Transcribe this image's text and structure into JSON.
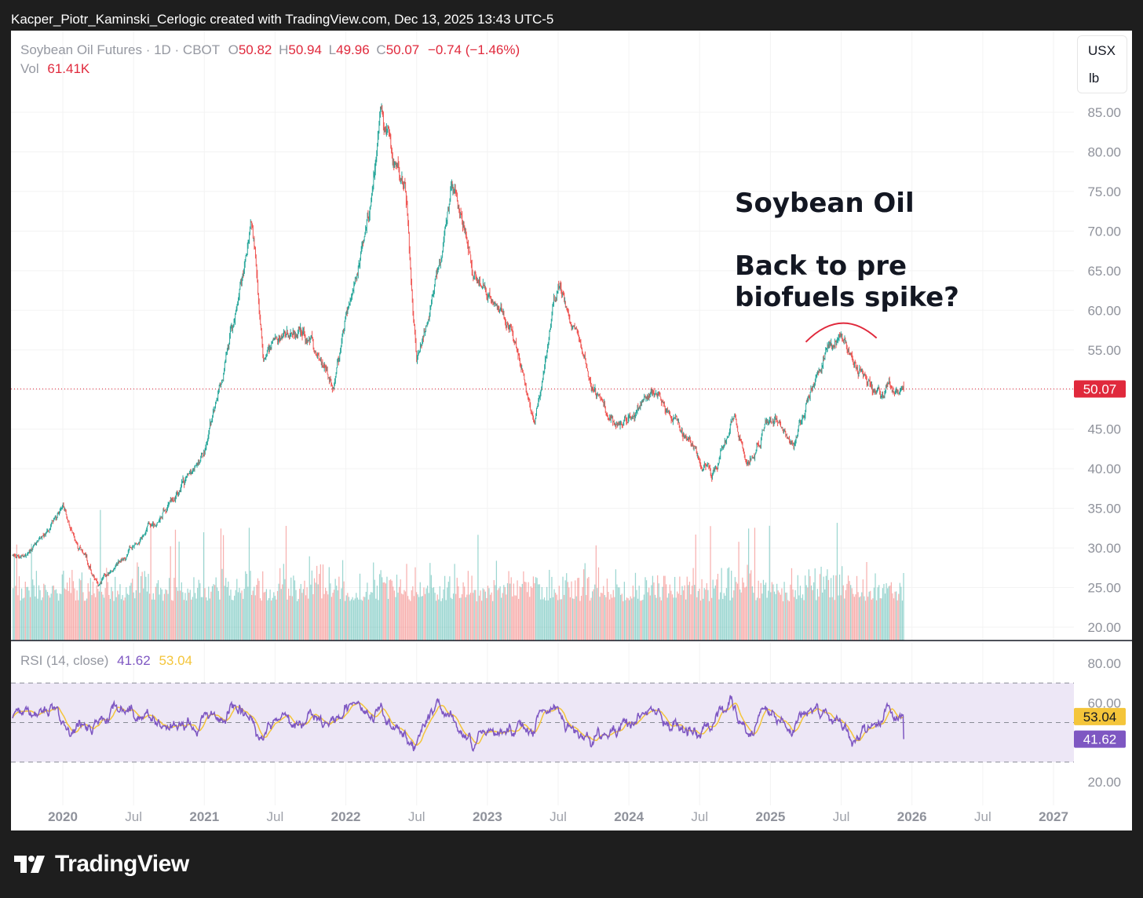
{
  "caption": "Kacper_Piotr_Kaminski_Cerlogic created with TradingView.com, Dec 13, 2025 13:43 UTC-5",
  "legend": {
    "symbol": "Soybean Oil Futures · 1D · CBOT",
    "o_label": "O",
    "o_value": "50.82",
    "h_label": "H",
    "h_value": "50.94",
    "l_label": "L",
    "l_value": "49.96",
    "c_label": "C",
    "c_value": "50.07",
    "change": "−0.74 (−1.46%)",
    "vol_label": "Vol",
    "vol_value": "61.41K"
  },
  "units": {
    "currency": "USX",
    "unit": "lb"
  },
  "annotation": {
    "title": "Soybean Oil",
    "line1": "Back to pre",
    "line2": "biofuels spike?"
  },
  "rsi_legend": {
    "label": "RSI (14, close)",
    "rsi_value": "41.62",
    "ma_value": "53.04"
  },
  "brand": "TradingView",
  "colors": {
    "up": "#26a69a",
    "down": "#ef5350",
    "rsi": "#7e57c2",
    "rsi_ma": "#f4c53a",
    "price_line": "#e0293c",
    "rsi_band": "#ede7f6"
  },
  "chart_data": [
    {
      "type": "candlestick",
      "title": "Soybean Oil Futures · 1D · CBOT",
      "ylim": [
        18,
        89
      ],
      "y_ticks": [
        "85.00",
        "80.00",
        "75.00",
        "70.00",
        "65.00",
        "60.00",
        "55.00",
        "50.00",
        "45.00",
        "40.00",
        "35.00",
        "30.00",
        "25.00",
        "20.00"
      ],
      "last_price": 50.07,
      "last_price_label": "50.07",
      "x_ticks": [
        "2020",
        "Jul",
        "2021",
        "Jul",
        "2022",
        "Jul",
        "2023",
        "Jul",
        "2024",
        "Jul",
        "2025",
        "Jul",
        "2026",
        "Jul",
        "2027"
      ],
      "x_range": [
        "2019-10",
        "2027-02"
      ],
      "data_end": "2025-12",
      "series": [
        {
          "name": "price",
          "x": [
            "2019-10",
            "2020-01",
            "2020-04",
            "2020-07",
            "2020-10",
            "2021-01",
            "2021-03",
            "2021-05",
            "2021-06",
            "2021-09",
            "2021-12",
            "2022-03",
            "2022-04",
            "2022-05",
            "2022-06",
            "2022-07",
            "2022-09",
            "2022-10",
            "2022-12",
            "2023-03",
            "2023-05",
            "2023-07",
            "2023-10",
            "2023-12",
            "2024-03",
            "2024-06",
            "2024-08",
            "2024-10",
            "2024-11",
            "2025-01",
            "2025-03",
            "2025-05",
            "2025-06",
            "2025-07",
            "2025-08",
            "2025-10",
            "2025-12"
          ],
          "values": [
            29,
            35,
            25.5,
            30,
            35,
            42,
            54,
            72,
            54,
            58,
            51,
            73,
            86,
            79,
            75,
            53,
            65,
            78,
            64,
            58,
            45,
            64,
            50,
            45,
            50,
            44,
            39,
            47,
            40.5,
            47,
            43,
            52,
            56,
            57,
            53,
            50,
            50.07
          ]
        }
      ]
    },
    {
      "type": "bar",
      "title": "Volume",
      "series": [
        {
          "name": "Vol",
          "last": "61.41K"
        }
      ]
    },
    {
      "type": "line",
      "title": "RSI (14, close)",
      "ylim": [
        14,
        86
      ],
      "y_ticks": [
        "80.00",
        "60.00",
        "20.00"
      ],
      "bands": [
        70,
        50,
        30
      ],
      "series": [
        {
          "name": "RSI",
          "last": 41.62,
          "last_label": "41.62"
        },
        {
          "name": "RSI-based MA",
          "last": 53.04,
          "last_label": "53.04"
        }
      ]
    }
  ]
}
